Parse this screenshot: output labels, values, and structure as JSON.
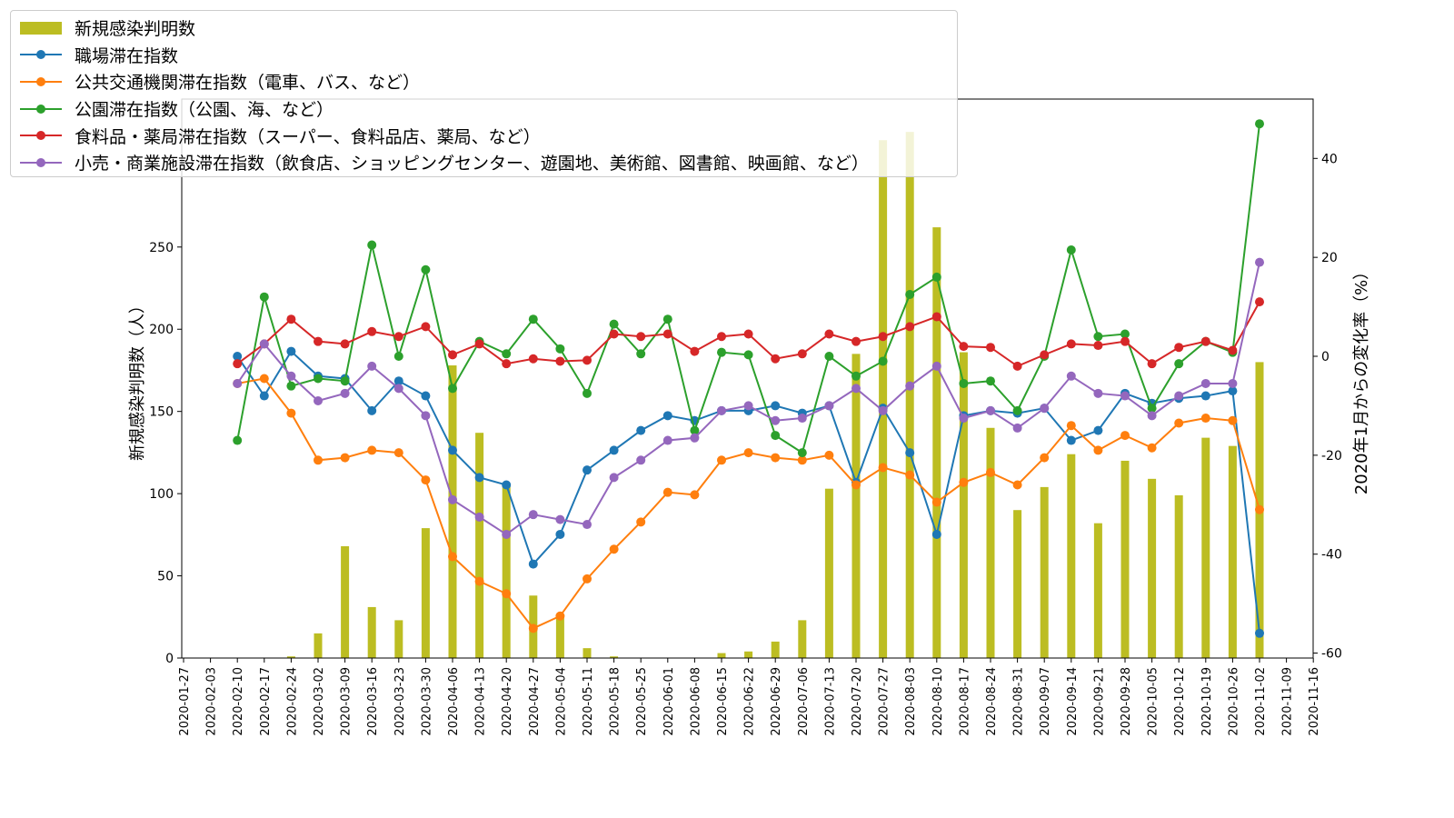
{
  "chart_data": {
    "type": "bar+line",
    "title": "",
    "xlabel": "",
    "ylabel": "新規感染判明数（人）",
    "y2label": "2020年1月からの変化率（%）",
    "ylim": [
      0,
      340
    ],
    "y2lim": [
      -61,
      52
    ],
    "yticks": [
      0,
      50,
      100,
      150,
      200,
      250
    ],
    "y2ticks": [
      -60,
      -40,
      -20,
      0,
      20,
      40
    ],
    "legend_position": "top-left",
    "x_tick_labels": [
      "2020-01-27",
      "2020-02-03",
      "2020-02-10",
      "2020-02-17",
      "2020-02-24",
      "2020-03-02",
      "2020-03-09",
      "2020-03-16",
      "2020-03-23",
      "2020-03-30",
      "2020-04-06",
      "2020-04-13",
      "2020-04-20",
      "2020-04-27",
      "2020-05-04",
      "2020-05-11",
      "2020-05-18",
      "2020-05-25",
      "2020-06-01",
      "2020-06-08",
      "2020-06-15",
      "2020-06-22",
      "2020-06-29",
      "2020-07-06",
      "2020-07-13",
      "2020-07-20",
      "2020-07-27",
      "2020-08-03",
      "2020-08-10",
      "2020-08-17",
      "2020-08-24",
      "2020-08-31",
      "2020-09-07",
      "2020-09-14",
      "2020-09-21",
      "2020-09-28",
      "2020-10-05",
      "2020-10-12",
      "2020-10-19",
      "2020-10-26",
      "2020-11-02",
      "2020-11-09",
      "2020-11-16"
    ],
    "bar_series": {
      "name": "新規感染判明数",
      "color": "#bcbd22",
      "x": [
        "2020-02-24",
        "2020-03-02",
        "2020-03-09",
        "2020-03-16",
        "2020-03-23",
        "2020-03-30",
        "2020-04-06",
        "2020-04-13",
        "2020-04-20",
        "2020-04-27",
        "2020-05-04",
        "2020-05-11",
        "2020-05-18",
        "2020-06-15",
        "2020-06-22",
        "2020-06-29",
        "2020-07-06",
        "2020-07-13",
        "2020-07-20",
        "2020-07-27",
        "2020-08-03",
        "2020-08-10",
        "2020-08-17",
        "2020-08-24",
        "2020-08-31",
        "2020-09-07",
        "2020-09-14",
        "2020-09-21",
        "2020-09-28",
        "2020-10-05",
        "2020-10-12",
        "2020-10-19",
        "2020-10-26",
        "2020-11-02"
      ],
      "values": [
        1,
        15,
        68,
        31,
        23,
        79,
        178,
        137,
        106,
        38,
        26,
        6,
        1,
        3,
        4,
        10,
        23,
        103,
        185,
        315,
        320,
        262,
        186,
        140,
        90,
        104,
        124,
        82,
        120,
        109,
        99,
        134,
        129,
        180
      ]
    },
    "line_x": [
      "2020-02-10",
      "2020-02-17",
      "2020-02-24",
      "2020-03-02",
      "2020-03-09",
      "2020-03-16",
      "2020-03-23",
      "2020-03-30",
      "2020-04-06",
      "2020-04-13",
      "2020-04-20",
      "2020-04-27",
      "2020-05-04",
      "2020-05-11",
      "2020-05-18",
      "2020-05-25",
      "2020-06-01",
      "2020-06-08",
      "2020-06-15",
      "2020-06-22",
      "2020-06-29",
      "2020-07-06",
      "2020-07-13",
      "2020-07-20",
      "2020-07-27",
      "2020-08-03",
      "2020-08-10",
      "2020-08-17",
      "2020-08-24",
      "2020-08-31",
      "2020-09-07",
      "2020-09-14",
      "2020-09-21",
      "2020-09-28",
      "2020-10-05",
      "2020-10-12",
      "2020-10-19",
      "2020-10-26",
      "2020-11-02"
    ],
    "series": [
      {
        "name": "職場滞在指数",
        "color": "#1f77b4",
        "values": [
          0,
          -8,
          1,
          -4,
          -4.5,
          -11,
          -5,
          -8,
          -19,
          -24.5,
          -26,
          -42,
          -36,
          -23,
          -19,
          -15,
          -12,
          -13,
          -11,
          -11,
          -10,
          -11.5,
          -10,
          -25.5,
          -10.5,
          -19.5,
          -36,
          -12,
          -11,
          -11.5,
          -10.5,
          -17,
          -15,
          -7.5,
          -9.5,
          -8.5,
          -8,
          -7,
          -56
        ]
      },
      {
        "name": "公共交通機関滞在指数（電車、バス、など）",
        "color": "#ff7f0e",
        "values": [
          -5.5,
          -4.5,
          -11.5,
          -21,
          -20.5,
          -19,
          -19.5,
          -25,
          -40.5,
          -45.5,
          -48,
          -55,
          -52.5,
          -45,
          -39,
          -33.5,
          -27.5,
          -28,
          -21,
          -19.5,
          -20.5,
          -21,
          -20,
          -26,
          -22.5,
          -24,
          -29.5,
          -25.5,
          -23.5,
          -26,
          -20.5,
          -14,
          -19,
          -16,
          -18.5,
          -13.5,
          -12.5,
          -13,
          -31
        ]
      },
      {
        "name": "公園滞在指数（公園、海、など）",
        "color": "#2ca02c",
        "values": [
          -17,
          12,
          -6,
          -4.5,
          -5,
          22.5,
          0,
          17.5,
          -6.5,
          3,
          0.5,
          7.5,
          1.5,
          -7.5,
          6.5,
          0.5,
          7.5,
          -15,
          0.8,
          0.3,
          -16,
          -19.5,
          0,
          -4,
          -1,
          12.5,
          16,
          -5.5,
          -5,
          -11,
          0,
          21.5,
          4,
          4.5,
          -10.5,
          -1.5,
          3,
          0.8,
          47
        ]
      },
      {
        "name": "食料品・薬局滞在指数（スーパー、食料品店、薬局、など）",
        "color": "#d62728",
        "values": [
          -1.5,
          2.5,
          7.5,
          3,
          2.5,
          5,
          4,
          6,
          0.3,
          2.5,
          -1.5,
          -0.5,
          -1,
          -0.8,
          4.5,
          4,
          4.5,
          1,
          4,
          4.5,
          -0.5,
          0.5,
          4.5,
          3,
          4,
          6,
          8,
          2,
          1.8,
          -2,
          0.3,
          2.5,
          2.2,
          3,
          -1.5,
          1.8,
          3,
          1.2,
          11
        ]
      },
      {
        "name": "小売・商業施設滞在指数（飲食店、ショッピングセンター、遊園地、美術館、図書館、映画館、など）",
        "color": "#9467bd",
        "values": [
          -5.5,
          2.5,
          -4,
          -9,
          -7.5,
          -2,
          -6.5,
          -12,
          -29,
          -32.5,
          -36,
          -32,
          -33,
          -34,
          -24.5,
          -21,
          -17,
          -16.5,
          -11,
          -10,
          -13,
          -12.5,
          -10,
          -6.5,
          -11,
          -6,
          -2,
          -12.5,
          -11,
          -14.5,
          -10.5,
          -4,
          -7.5,
          -8,
          -12,
          -8,
          -5.5,
          -5.5,
          19
        ]
      }
    ]
  }
}
